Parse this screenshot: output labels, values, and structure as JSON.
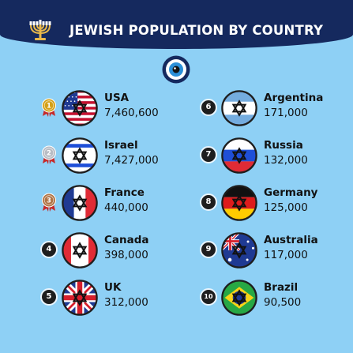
{
  "title": "JEWISH POPULATION BY COUNTRY",
  "colors": {
    "header": "#15295e",
    "background": "#8ed0f5",
    "gold": "#d4a017",
    "silver": "#b8bcc4",
    "bronze": "#b07345"
  },
  "icons": {
    "header_left": "menorah-icon",
    "header_center": "evil-eye-icon",
    "flag_overlay": "star-of-david-icon"
  },
  "chart_data": {
    "type": "table",
    "title": "JEWISH POPULATION BY COUNTRY",
    "rows": [
      {
        "rank": "1",
        "country": "USA",
        "population": "7,460,600",
        "value": 7460600,
        "flag": "usa-flag",
        "badge": "gold-medal"
      },
      {
        "rank": "2",
        "country": "Israel",
        "population": "7,427,000",
        "value": 7427000,
        "flag": "israel-flag",
        "badge": "silver-medal"
      },
      {
        "rank": "3",
        "country": "France",
        "population": "440,000",
        "value": 440000,
        "flag": "france-flag",
        "badge": "bronze-medal"
      },
      {
        "rank": "4",
        "country": "Canada",
        "population": "398,000",
        "value": 398000,
        "flag": "canada-flag",
        "badge": "number"
      },
      {
        "rank": "5",
        "country": "UK",
        "population": "312,000",
        "value": 312000,
        "flag": "uk-flag",
        "badge": "number"
      },
      {
        "rank": "6",
        "country": "Argentina",
        "population": "171,000",
        "value": 171000,
        "flag": "argentina-flag",
        "badge": "number"
      },
      {
        "rank": "7",
        "country": "Russia",
        "population": "132,000",
        "value": 132000,
        "flag": "russia-flag",
        "badge": "number"
      },
      {
        "rank": "8",
        "country": "Germany",
        "population": "125,000",
        "value": 125000,
        "flag": "germany-flag",
        "badge": "number"
      },
      {
        "rank": "9",
        "country": "Australia",
        "population": "117,000",
        "value": 117000,
        "flag": "australia-flag",
        "badge": "number"
      },
      {
        "rank": "10",
        "country": "Brazil",
        "population": "90,500",
        "value": 90500,
        "flag": "brazil-flag",
        "badge": "number"
      }
    ]
  }
}
